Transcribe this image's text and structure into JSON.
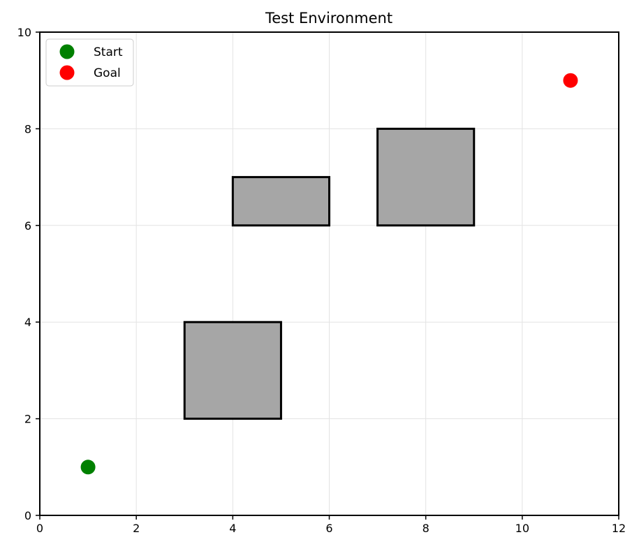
{
  "chart_data": {
    "type": "scatter",
    "title": "Test Environment",
    "xlabel": "",
    "ylabel": "",
    "xlim": [
      0,
      12
    ],
    "ylim": [
      0,
      10
    ],
    "xticks": [
      0,
      2,
      4,
      6,
      8,
      10,
      12
    ],
    "yticks": [
      0,
      2,
      4,
      6,
      8,
      10
    ],
    "xtick_labels": [
      "0",
      "2",
      "4",
      "6",
      "8",
      "10",
      "12"
    ],
    "ytick_labels": [
      "0",
      "2",
      "4",
      "6",
      "8",
      "10"
    ],
    "grid": true,
    "legend_position": "top-left",
    "series": [
      {
        "name": "Start",
        "color": "#008000",
        "points": [
          {
            "x": 1,
            "y": 1
          }
        ]
      },
      {
        "name": "Goal",
        "color": "#ff0000",
        "points": [
          {
            "x": 11,
            "y": 9
          }
        ]
      }
    ],
    "obstacles": [
      {
        "x_min": 3,
        "x_max": 5,
        "y_min": 2,
        "y_max": 4
      },
      {
        "x_min": 4,
        "x_max": 6,
        "y_min": 6,
        "y_max": 7
      },
      {
        "x_min": 7,
        "x_max": 9,
        "y_min": 6,
        "y_max": 8
      }
    ],
    "obstacle_fill": "#a6a6a6",
    "obstacle_edge": "#000000"
  }
}
